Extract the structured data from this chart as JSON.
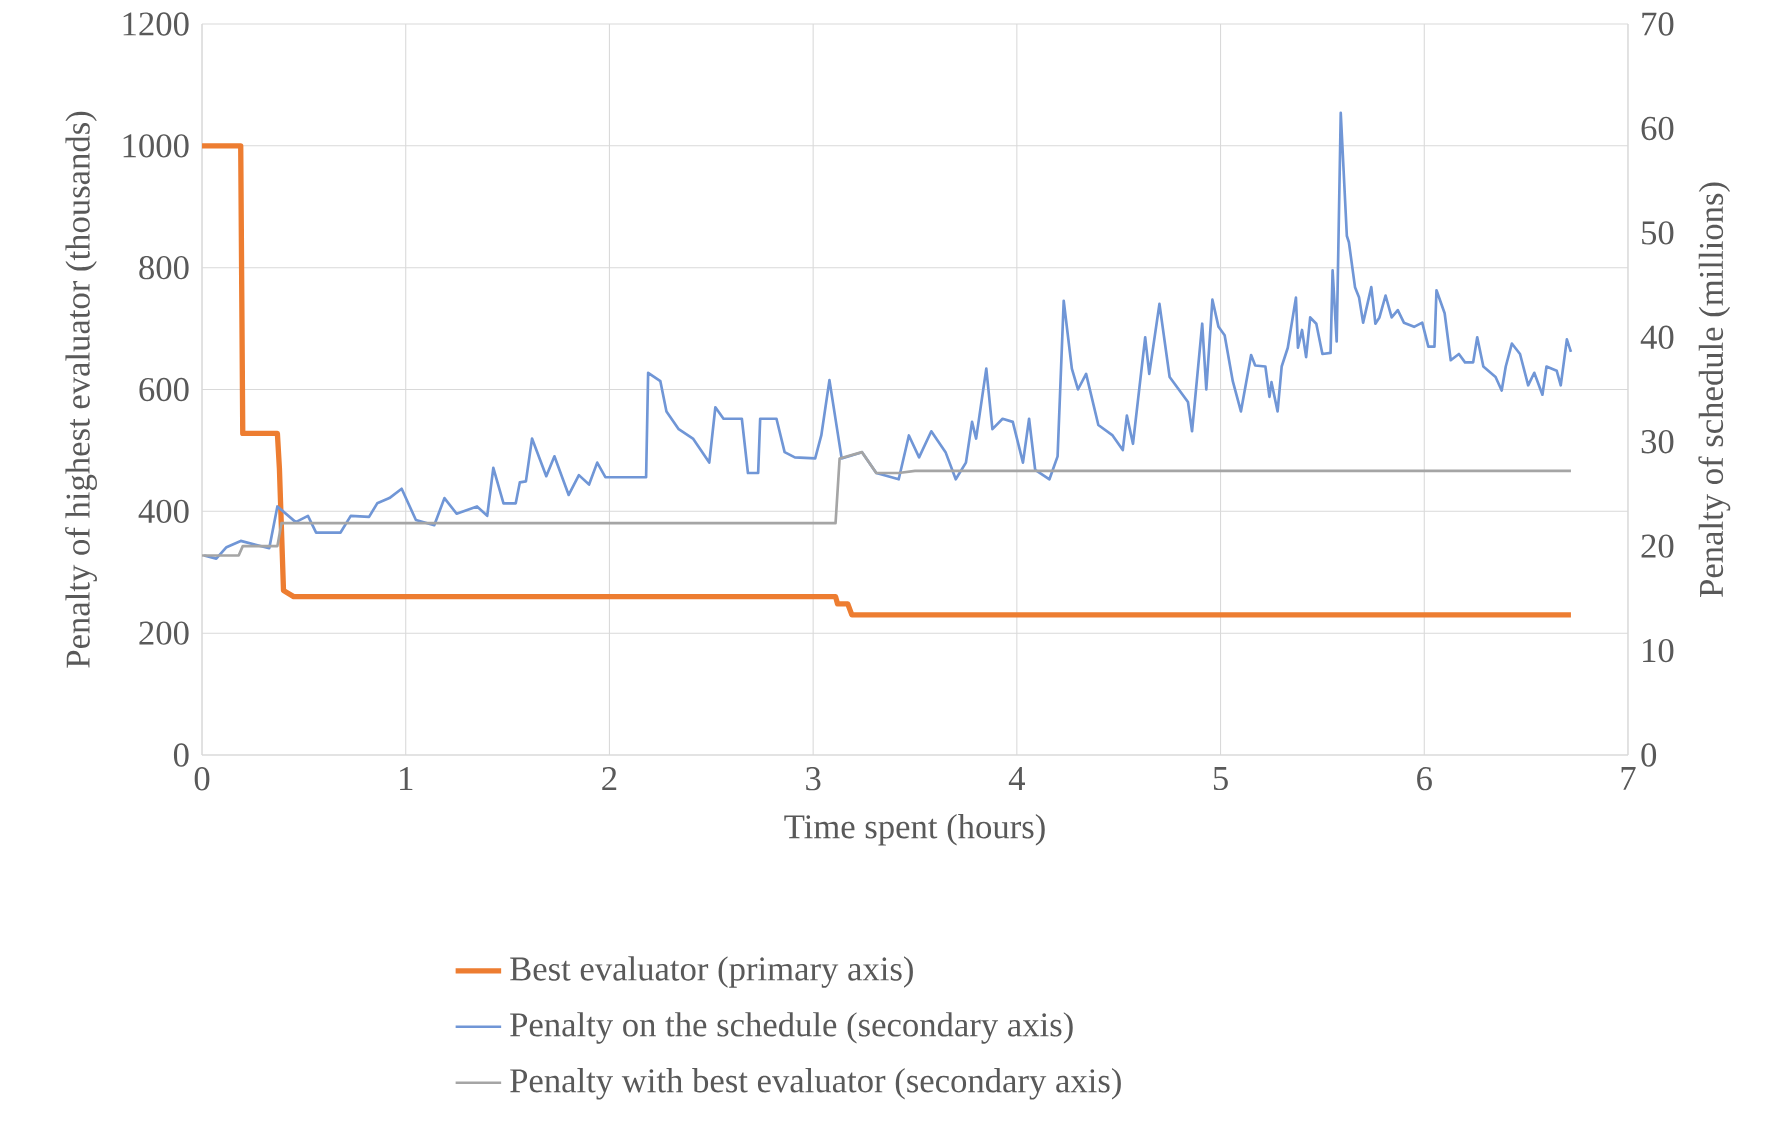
{
  "chart_data": {
    "type": "line",
    "xlabel": "Time spent (hours)",
    "ylabel": "Penalty of highest evaluator (thousands)",
    "y2label": "Penalty of schedule (millions)",
    "xlim": [
      0,
      7
    ],
    "xticks": [
      0,
      1,
      2,
      3,
      4,
      5,
      6,
      7
    ],
    "ylim": [
      0,
      1200
    ],
    "yticks": [
      0,
      200,
      400,
      600,
      800,
      1000,
      1200
    ],
    "y2lim": [
      0,
      70
    ],
    "y2ticks": [
      0,
      10,
      20,
      30,
      40,
      50,
      60,
      70
    ],
    "grid": true,
    "legend": "bottom",
    "series": [
      {
        "name": "Best evaluator (primary axis)",
        "color": "#ed7d31",
        "x": [
          0,
          0.19,
          0.2,
          0.37,
          0.38,
          0.4,
          0.45,
          3.11,
          3.12,
          3.17,
          3.19,
          6.72
        ],
        "values": [
          1000,
          1000,
          528,
          528,
          470,
          270,
          260,
          260,
          248,
          248,
          230,
          230
        ]
      },
      {
        "name": "Penalty on the schedule (secondary axis)",
        "color": "#7096d6",
        "axis": "y2",
        "x": [
          0.01,
          0.07,
          0.12,
          0.19,
          0.33,
          0.37,
          0.46,
          0.52,
          0.56,
          0.68,
          0.73,
          0.82,
          0.86,
          0.92,
          0.98,
          1.05,
          1.14,
          1.19,
          1.25,
          1.35,
          1.4,
          1.43,
          1.48,
          1.54,
          1.56,
          1.59,
          1.62,
          1.69,
          1.73,
          1.8,
          1.85,
          1.9,
          1.94,
          1.98,
          2.18,
          2.19,
          2.25,
          2.28,
          2.34,
          2.41,
          2.49,
          2.52,
          2.56,
          2.65,
          2.68,
          2.73,
          2.74,
          2.82,
          2.86,
          2.91,
          3.01,
          3.04,
          3.08,
          3.14,
          3.24,
          3.31,
          3.42,
          3.47,
          3.52,
          3.58,
          3.65,
          3.7,
          3.75,
          3.78,
          3.8,
          3.85,
          3.88,
          3.93,
          3.98,
          4.03,
          4.06,
          4.09,
          4.16,
          4.2,
          4.23,
          4.27,
          4.3,
          4.34,
          4.4,
          4.47,
          4.52,
          4.54,
          4.57,
          4.63,
          4.65,
          4.7,
          4.75,
          4.84,
          4.86,
          4.91,
          4.93,
          4.96,
          4.99,
          5.02,
          5.06,
          5.1,
          5.15,
          5.17,
          5.22,
          5.24,
          5.25,
          5.28,
          5.3,
          5.33,
          5.37,
          5.38,
          5.4,
          5.42,
          5.44,
          5.47,
          5.5,
          5.54,
          5.55,
          5.57,
          5.59,
          5.62,
          5.63,
          5.66,
          5.68,
          5.7,
          5.74,
          5.76,
          5.78,
          5.81,
          5.84,
          5.87,
          5.9,
          5.95,
          5.99,
          6.02,
          6.05,
          6.06,
          6.1,
          6.13,
          6.17,
          6.2,
          6.24,
          6.26,
          6.29,
          6.35,
          6.38,
          6.4,
          6.43,
          6.47,
          6.51,
          6.54,
          6.58,
          6.6,
          6.65,
          6.67,
          6.7,
          6.72
        ],
        "values": [
          19.1,
          18.8,
          19.9,
          20.5,
          19.8,
          23.8,
          22.3,
          22.9,
          21.3,
          21.3,
          22.9,
          22.8,
          24.1,
          24.6,
          25.5,
          22.5,
          22.0,
          24.6,
          23.1,
          23.8,
          22.9,
          27.5,
          24.1,
          24.1,
          26.1,
          26.2,
          30.3,
          26.7,
          28.6,
          24.9,
          26.8,
          25.9,
          28.0,
          26.6,
          26.6,
          36.6,
          35.8,
          32.9,
          31.2,
          30.3,
          28.0,
          33.3,
          32.2,
          32.2,
          27.0,
          27.0,
          32.2,
          32.2,
          29.0,
          28.5,
          28.4,
          30.6,
          35.9,
          28.4,
          29.0,
          27.0,
          26.4,
          30.6,
          28.5,
          31.0,
          29.0,
          26.4,
          28.0,
          31.9,
          30.3,
          37.0,
          31.2,
          32.2,
          31.9,
          28.0,
          32.2,
          27.3,
          26.4,
          28.6,
          43.5,
          37.0,
          35.0,
          36.5,
          31.6,
          30.6,
          29.2,
          32.5,
          29.8,
          40.0,
          36.5,
          43.2,
          36.2,
          33.8,
          31.0,
          41.3,
          35.0,
          43.6,
          41.0,
          40.2,
          35.8,
          32.9,
          38.3,
          37.3,
          37.2,
          34.3,
          35.7,
          32.9,
          37.2,
          39.0,
          43.8,
          39.0,
          40.7,
          38.1,
          41.9,
          41.3,
          38.4,
          38.5,
          46.4,
          39.6,
          61.5,
          49.7,
          49.1,
          44.8,
          43.8,
          41.4,
          44.8,
          41.3,
          41.9,
          44.0,
          41.9,
          42.6,
          41.4,
          41.0,
          41.4,
          39.1,
          39.1,
          44.5,
          42.3,
          37.8,
          38.4,
          37.6,
          37.6,
          40.0,
          37.2,
          36.2,
          34.9,
          37.2,
          39.4,
          38.4,
          35.4,
          36.6,
          34.5,
          37.2,
          36.8,
          35.4,
          39.8,
          38.6
        ]
      },
      {
        "name": "Penalty with best evaluator (secondary axis)",
        "color": "#a5a5a5",
        "axis": "y2",
        "x": [
          0,
          0.18,
          0.2,
          0.37,
          0.39,
          3.11,
          3.13,
          3.24,
          3.31,
          3.42,
          3.5,
          6.72
        ],
        "values": [
          19.1,
          19.1,
          20.0,
          20.0,
          22.2,
          22.2,
          28.4,
          29.0,
          27.0,
          27.0,
          27.2,
          27.2
        ]
      }
    ]
  }
}
